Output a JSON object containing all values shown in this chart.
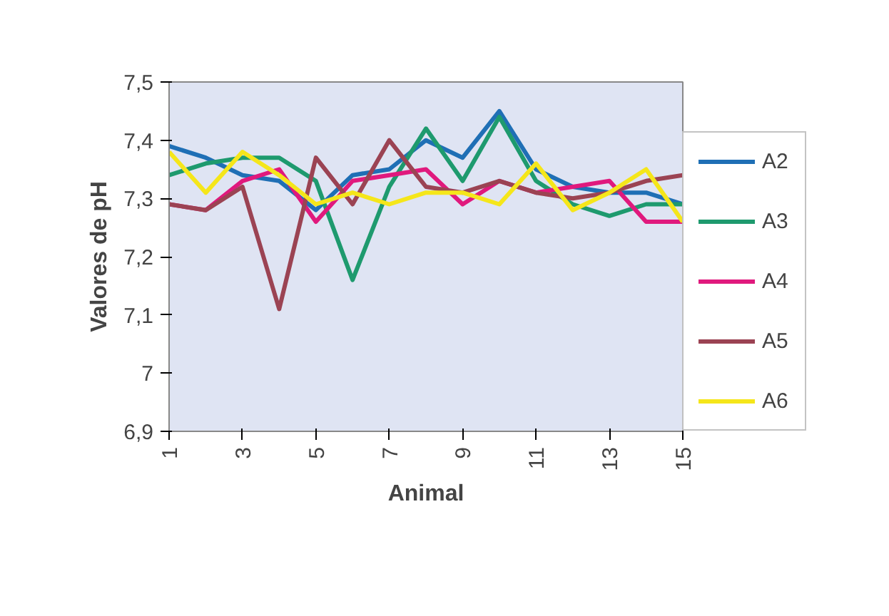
{
  "chart_data": {
    "type": "line",
    "xlabel": "Animal",
    "ylabel": "Valores de pH",
    "x": [
      1,
      2,
      3,
      4,
      5,
      6,
      7,
      8,
      9,
      10,
      11,
      12,
      13,
      14,
      15
    ],
    "xlim": [
      1,
      15
    ],
    "xticks": [
      1,
      3,
      5,
      7,
      9,
      11,
      13,
      15
    ],
    "ylim": [
      6.9,
      7.5
    ],
    "yticks": [
      {
        "value": 6.9,
        "label": "6,9"
      },
      {
        "value": 7.0,
        "label": "7"
      },
      {
        "value": 7.1,
        "label": "7,1"
      },
      {
        "value": 7.2,
        "label": "7,2"
      },
      {
        "value": 7.3,
        "label": "7,3"
      },
      {
        "value": 7.4,
        "label": "7,4"
      },
      {
        "value": 7.5,
        "label": "7,5"
      }
    ],
    "grid": false,
    "legend": "bottom right",
    "marker": "none",
    "line_style": "solid",
    "series": [
      {
        "name": "A2",
        "color": "#1f6fb5",
        "values": [
          7.39,
          7.37,
          7.34,
          7.33,
          7.28,
          7.34,
          7.35,
          7.4,
          7.37,
          7.45,
          7.35,
          7.32,
          7.31,
          7.31,
          7.29
        ]
      },
      {
        "name": "A3",
        "color": "#1e9a6e",
        "values": [
          7.34,
          7.36,
          7.37,
          7.37,
          7.33,
          7.16,
          7.32,
          7.42,
          7.33,
          7.44,
          7.33,
          7.29,
          7.27,
          7.29,
          7.29
        ]
      },
      {
        "name": "A4",
        "color": "#e0197d",
        "values": [
          7.29,
          7.28,
          7.33,
          7.35,
          7.26,
          7.33,
          7.34,
          7.35,
          7.29,
          7.33,
          7.31,
          7.32,
          7.33,
          7.26,
          7.26
        ]
      },
      {
        "name": "A5",
        "color": "#9b4353",
        "values": [
          7.29,
          7.28,
          7.32,
          7.11,
          7.37,
          7.29,
          7.4,
          7.32,
          7.31,
          7.33,
          7.31,
          7.3,
          7.31,
          7.33,
          7.34
        ]
      },
      {
        "name": "A6",
        "color": "#f5e61a",
        "values": [
          7.38,
          7.31,
          7.38,
          7.34,
          7.29,
          7.31,
          7.29,
          7.31,
          7.31,
          7.29,
          7.36,
          7.28,
          7.31,
          7.35,
          7.26
        ]
      }
    ]
  }
}
